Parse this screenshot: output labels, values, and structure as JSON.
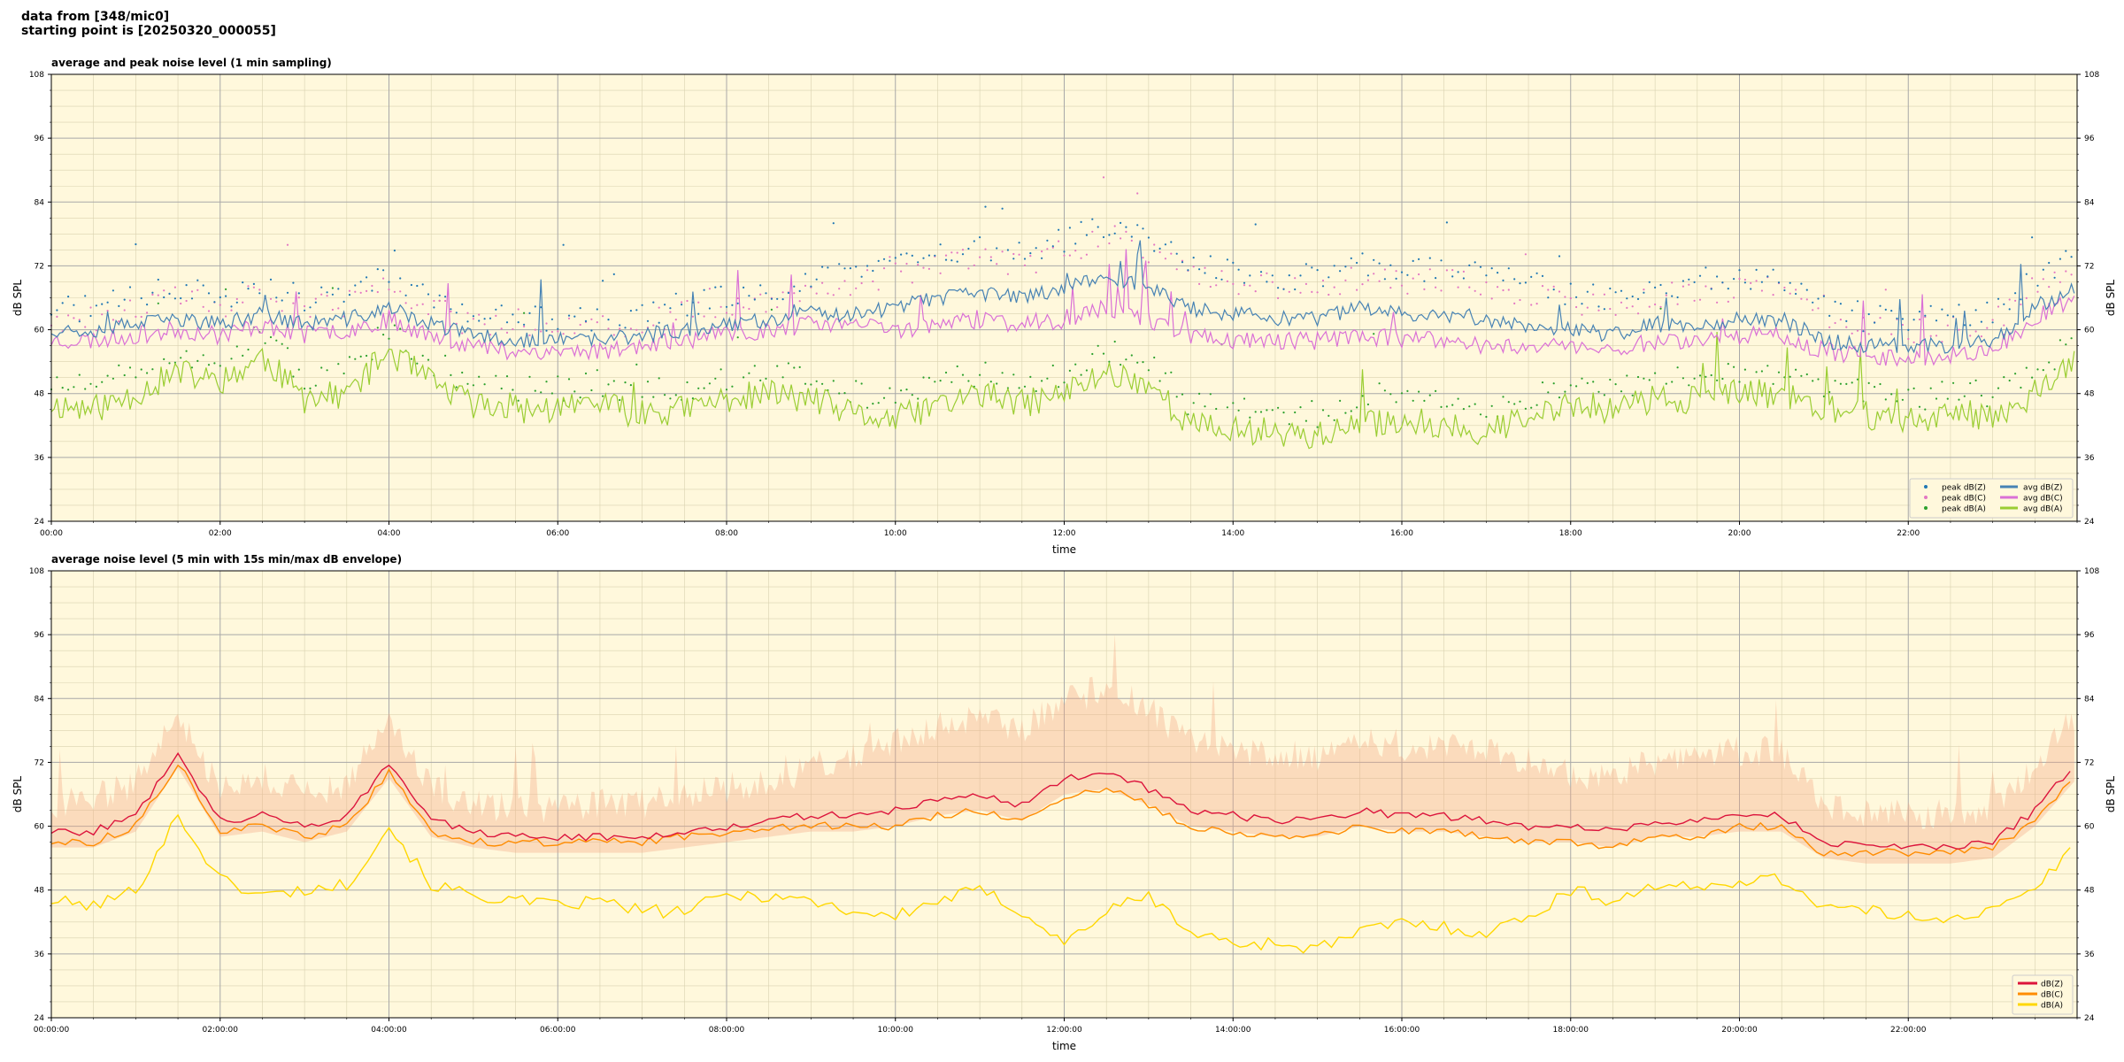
{
  "header": {
    "line1": "data from [348/mic0]",
    "line2": "starting point is [20250320_000055]"
  },
  "colors": {
    "plot_bg": "#fff8dc",
    "peak_z": "#1f77b4",
    "peak_c": "#e377c2",
    "peak_a": "#2ca02c",
    "avg_z": "#4682b4",
    "avg_c": "#da70d6",
    "avg_a": "#9acd32",
    "dbz": "#dc143c",
    "dbc": "#ff8c00",
    "dba": "#ffd700",
    "envelope": "#f4a582"
  },
  "chart_data": [
    {
      "type": "line",
      "title": "average and peak noise level (1 min sampling)",
      "xlabel": "time",
      "ylabel": "dB SPL",
      "ylabel_right": "dB SPL",
      "ylim": [
        24,
        108
      ],
      "yticks": [
        24,
        36,
        48,
        60,
        72,
        84,
        96,
        108
      ],
      "xlim_hours": [
        0,
        24
      ],
      "xticks": [
        "00:00",
        "02:00",
        "04:00",
        "06:00",
        "08:00",
        "10:00",
        "12:00",
        "14:00",
        "16:00",
        "18:00",
        "20:00",
        "22:00"
      ],
      "grid": true,
      "legend_position": "lower-right",
      "legend": [
        "peak dB(Z)",
        "peak dB(C)",
        "peak dB(A)",
        "avg dB(Z)",
        "avg dB(C)",
        "avg dB(A)"
      ],
      "x_hours": [
        0,
        0.5,
        1,
        1.5,
        2,
        2.5,
        3,
        3.5,
        4,
        4.5,
        5,
        5.5,
        6,
        6.5,
        7,
        7.5,
        8,
        8.5,
        9,
        9.5,
        10,
        10.5,
        11,
        11.5,
        12,
        12.5,
        13,
        13.5,
        14,
        14.5,
        15,
        15.5,
        16,
        16.5,
        17,
        17.5,
        18,
        18.5,
        19,
        19.5,
        20,
        20.5,
        21,
        21.5,
        22,
        22.5,
        23,
        23.5,
        24
      ],
      "series": [
        {
          "name": "avg dB(Z)",
          "values": [
            60,
            60,
            61,
            62,
            61,
            63,
            61,
            62,
            64,
            61,
            59,
            58,
            58,
            58,
            59,
            60,
            61,
            62,
            63,
            63,
            64,
            66,
            67,
            66,
            68,
            70,
            68,
            64,
            63,
            62,
            62,
            64,
            63,
            63,
            62,
            61,
            60,
            59,
            61,
            61,
            62,
            62,
            58,
            57,
            57,
            57,
            58,
            64,
            68
          ]
        },
        {
          "name": "avg dB(C)",
          "values": [
            58,
            58,
            59,
            60,
            59,
            61,
            59,
            60,
            62,
            59,
            57,
            56,
            56,
            56,
            57,
            58,
            59,
            60,
            61,
            61,
            60,
            61,
            62,
            61,
            62,
            64,
            62,
            59,
            58,
            58,
            58,
            59,
            58,
            58,
            57,
            57,
            57,
            56,
            58,
            58,
            59,
            59,
            56,
            55,
            55,
            55,
            56,
            62,
            66
          ]
        },
        {
          "name": "avg dB(A)",
          "values": [
            46,
            45,
            48,
            52,
            50,
            55,
            47,
            48,
            56,
            50,
            46,
            45,
            45,
            46,
            44,
            45,
            47,
            48,
            47,
            44,
            43,
            46,
            48,
            46,
            48,
            52,
            50,
            42,
            41,
            41,
            40,
            42,
            43,
            42,
            41,
            43,
            46,
            45,
            47,
            47,
            48,
            48,
            45,
            44,
            43,
            44,
            44,
            48,
            54
          ]
        },
        {
          "name": "peak dB(Z)",
          "values": [
            64,
            64,
            66,
            68,
            66,
            69,
            66,
            67,
            70,
            66,
            63,
            62,
            62,
            62,
            63,
            65,
            66,
            67,
            70,
            71,
            72,
            74,
            75,
            74,
            77,
            79,
            77,
            73,
            71,
            70,
            70,
            72,
            71,
            71,
            70,
            69,
            67,
            66,
            68,
            69,
            70,
            70,
            64,
            62,
            62,
            62,
            63,
            70,
            74
          ]
        },
        {
          "name": "peak dB(C)",
          "values": [
            62,
            62,
            64,
            66,
            64,
            67,
            64,
            65,
            68,
            64,
            61,
            60,
            60,
            60,
            61,
            63,
            64,
            65,
            68,
            69,
            70,
            72,
            73,
            72,
            75,
            77,
            75,
            71,
            69,
            68,
            68,
            70,
            69,
            69,
            68,
            67,
            65,
            64,
            66,
            67,
            68,
            68,
            62,
            60,
            60,
            60,
            61,
            68,
            72
          ]
        },
        {
          "name": "peak dB(A)",
          "values": [
            50,
            49,
            52,
            56,
            54,
            59,
            51,
            52,
            60,
            54,
            50,
            49,
            49,
            50,
            48,
            49,
            51,
            52,
            51,
            48,
            47,
            50,
            52,
            50,
            52,
            56,
            54,
            46,
            45,
            45,
            44,
            46,
            47,
            46,
            45,
            47,
            50,
            49,
            51,
            51,
            52,
            52,
            49,
            48,
            47,
            48,
            48,
            52,
            58
          ]
        }
      ]
    },
    {
      "type": "line",
      "title": "average noise level (5 min with 15s min/max dB envelope)",
      "xlabel": "time",
      "ylabel": "dB SPL",
      "ylabel_right": "dB SPL",
      "ylim": [
        24,
        108
      ],
      "yticks": [
        24,
        36,
        48,
        60,
        72,
        84,
        96,
        108
      ],
      "xlim_hours": [
        0,
        24
      ],
      "xticks": [
        "00:00:00",
        "02:00:00",
        "04:00:00",
        "06:00:00",
        "08:00:00",
        "10:00:00",
        "12:00:00",
        "14:00:00",
        "16:00:00",
        "18:00:00",
        "20:00:00",
        "22:00:00"
      ],
      "grid": true,
      "legend_position": "lower-right",
      "legend": [
        "dB(Z)",
        "dB(C)",
        "dB(A)"
      ],
      "x_hours": [
        0,
        0.5,
        1,
        1.5,
        2,
        2.5,
        3,
        3.5,
        4,
        4.5,
        5,
        5.5,
        6,
        6.5,
        7,
        7.5,
        8,
        8.5,
        9,
        9.5,
        10,
        10.5,
        11,
        11.5,
        12,
        12.5,
        13,
        13.5,
        14,
        14.5,
        15,
        15.5,
        16,
        16.5,
        17,
        17.5,
        18,
        18.5,
        19,
        19.5,
        20,
        20.5,
        21,
        21.5,
        22,
        22.5,
        23,
        23.5,
        24
      ],
      "series": [
        {
          "name": "dB(Z)",
          "values": [
            59,
            59,
            62,
            74,
            61,
            62,
            60,
            62,
            72,
            61,
            59,
            58,
            58,
            58,
            58,
            59,
            60,
            61,
            62,
            62,
            63,
            65,
            66,
            64,
            69,
            70,
            67,
            63,
            62,
            61,
            61,
            63,
            62,
            62,
            61,
            60,
            60,
            59,
            61,
            61,
            62,
            62,
            57,
            56,
            56,
            56,
            57,
            63,
            72
          ]
        },
        {
          "name": "dB(C)",
          "values": [
            57,
            57,
            60,
            72,
            59,
            60,
            58,
            60,
            70,
            59,
            57,
            57,
            57,
            57,
            57,
            58,
            59,
            60,
            60,
            60,
            60,
            62,
            63,
            61,
            65,
            67,
            64,
            60,
            59,
            58,
            58,
            60,
            59,
            59,
            58,
            57,
            57,
            56,
            58,
            58,
            60,
            60,
            55,
            55,
            55,
            55,
            56,
            61,
            70
          ]
        },
        {
          "name": "dB(A)",
          "values": [
            46,
            45,
            48,
            62,
            50,
            47,
            48,
            49,
            60,
            49,
            47,
            46,
            45,
            46,
            44,
            44,
            47,
            47,
            46,
            44,
            43,
            46,
            48,
            44,
            38,
            44,
            47,
            40,
            38,
            38,
            37,
            40,
            42,
            41,
            40,
            43,
            48,
            46,
            49,
            48,
            50,
            50,
            45,
            44,
            43,
            43,
            44,
            48,
            57
          ]
        },
        {
          "name": "envelope max",
          "values": [
            63,
            64,
            67,
            80,
            66,
            68,
            65,
            67,
            80,
            66,
            63,
            62,
            62,
            63,
            63,
            65,
            66,
            67,
            70,
            72,
            74,
            78,
            79,
            77,
            82,
            85,
            81,
            75,
            73,
            72,
            72,
            75,
            74,
            74,
            73,
            71,
            69,
            68,
            71,
            72,
            73,
            73,
            63,
            61,
            61,
            61,
            62,
            70,
            80
          ]
        }
      ]
    }
  ]
}
